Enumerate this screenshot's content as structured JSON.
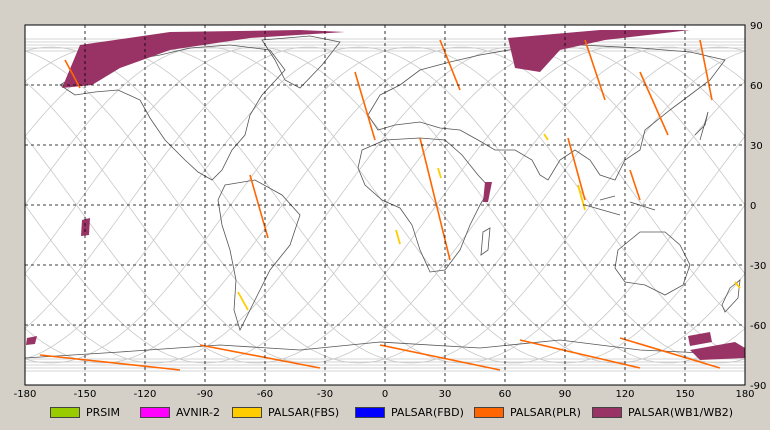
{
  "map": {
    "x_ticks": [
      "-180",
      "-150",
      "-120",
      "-90",
      "-60",
      "-30",
      "0",
      "30",
      "60",
      "90",
      "120",
      "150",
      "180"
    ],
    "y_ticks": [
      "90",
      "60",
      "30",
      "0",
      "-30",
      "-60",
      "-90"
    ],
    "lon_range": [
      -180,
      180
    ],
    "lat_range": [
      -90,
      90
    ],
    "grid": "dashed every 30 degrees"
  },
  "legend": [
    {
      "label": "PRSIM",
      "color": "#99cc00"
    },
    {
      "label": "AVNIR-2",
      "color": "#ff00ff"
    },
    {
      "label": "PALSAR(FBS)",
      "color": "#ffcc00"
    },
    {
      "label": "PALSAR(FBD)",
      "color": "#0000ff"
    },
    {
      "label": "PALSAR(PLR)",
      "color": "#ff6600"
    },
    {
      "label": "PALSAR(WB1/WB2)",
      "color": "#993366"
    }
  ]
}
